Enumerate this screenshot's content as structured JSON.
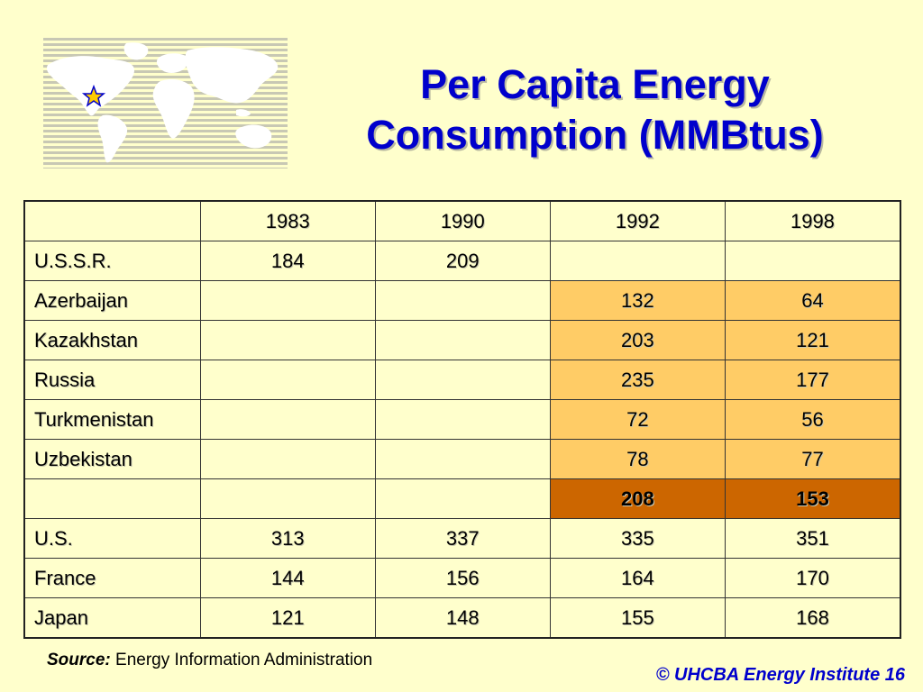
{
  "slide": {
    "title_line1": "Per Capita Energy",
    "title_line2": "Consumption (MMBtus)",
    "logo_icon": "world-map-star-icon"
  },
  "table": {
    "columns": [
      "",
      "1983",
      "1990",
      "1992",
      "1998"
    ],
    "rows": [
      {
        "country": "U.S.S.R.",
        "v1983": "184",
        "v1990": "209",
        "v1992": "",
        "v1998": ""
      },
      {
        "country": "Azerbaijan",
        "v1983": "",
        "v1990": "",
        "v1992": "132",
        "v1998": "64"
      },
      {
        "country": "Kazakhstan",
        "v1983": "",
        "v1990": "",
        "v1992": "203",
        "v1998": "121"
      },
      {
        "country": "Russia",
        "v1983": "",
        "v1990": "",
        "v1992": "235",
        "v1998": "177"
      },
      {
        "country": "Turkmenistan",
        "v1983": "",
        "v1990": "",
        "v1992": "72",
        "v1998": "56"
      },
      {
        "country": "Uzbekistan",
        "v1983": "",
        "v1990": "",
        "v1992": "78",
        "v1998": "77"
      },
      {
        "country": "",
        "v1983": "",
        "v1990": "",
        "v1992": "208",
        "v1998": "153"
      },
      {
        "country": "U.S.",
        "v1983": "313",
        "v1990": "337",
        "v1992": "335",
        "v1998": "351"
      },
      {
        "country": "France",
        "v1983": "144",
        "v1990": "156",
        "v1992": "164",
        "v1998": "170"
      },
      {
        "country": "Japan",
        "v1983": "121",
        "v1990": "148",
        "v1992": "155",
        "v1998": "168"
      }
    ]
  },
  "source": {
    "label": "Source:",
    "text": "Energy Information Administration"
  },
  "footer": {
    "text": "© UHCBA Energy Institute 16"
  },
  "colors": {
    "background": "#FFFFCC",
    "title": "#0000CC",
    "highlight": "#FFCC66",
    "highlight_dark": "#CC6600"
  }
}
